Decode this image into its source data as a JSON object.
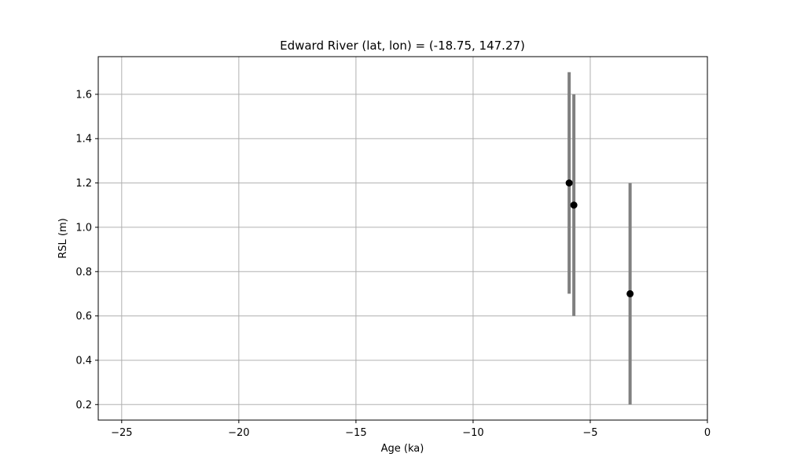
{
  "chart_data": {
    "type": "scatter",
    "title": "Edward River (lat, lon) = (-18.75, 147.27)",
    "xlabel": "Age (ka)",
    "ylabel": "RSL (m)",
    "xlim": [
      -26,
      0
    ],
    "ylim": [
      0.13,
      1.77
    ],
    "x_ticks": [
      -25,
      -20,
      -15,
      -10,
      -5,
      0
    ],
    "x_tick_labels": [
      "−25",
      "−20",
      "−15",
      "−10",
      "−5",
      "0"
    ],
    "y_ticks": [
      0.2,
      0.4,
      0.6,
      0.8,
      1.0,
      1.2,
      1.4,
      1.6
    ],
    "y_tick_labels": [
      "0.2",
      "0.4",
      "0.6",
      "0.8",
      "1.0",
      "1.2",
      "1.4",
      "1.6"
    ],
    "grid": true,
    "series": [
      {
        "points": [
          {
            "x": -5.9,
            "y": 1.2,
            "y_low": 0.7,
            "y_high": 1.7
          },
          {
            "x": -5.7,
            "y": 1.1,
            "y_low": 0.6,
            "y_high": 1.6
          },
          {
            "x": -3.3,
            "y": 0.7,
            "y_low": 0.2,
            "y_high": 1.2
          }
        ],
        "marker_color": "#000000",
        "errorbar_color": "#808080"
      }
    ],
    "grid_color": "#b0b0b0"
  }
}
